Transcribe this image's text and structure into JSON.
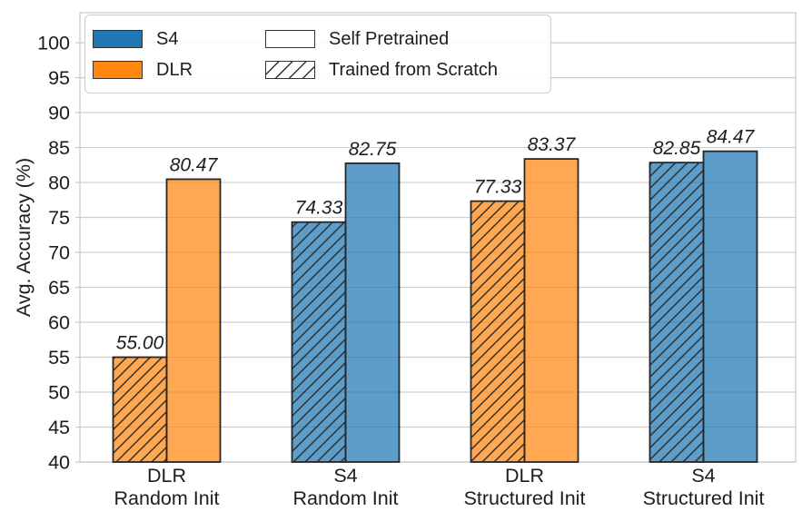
{
  "page": {
    "background": "#ffffff"
  },
  "chart_data": {
    "type": "bar",
    "title": "",
    "xlabel": "",
    "ylabel": "Avg. Accuracy (%)",
    "ylim": [
      40,
      104.3
    ],
    "yticks": [
      40,
      45,
      50,
      55,
      60,
      65,
      70,
      75,
      80,
      85,
      90,
      95,
      100
    ],
    "grid": true,
    "legend_position": "upper left",
    "categories": [
      [
        "DLR",
        "Random Init"
      ],
      [
        "S4",
        "Random Init"
      ],
      [
        "DLR",
        "Structured Init"
      ],
      [
        "S4",
        "Structured Init"
      ]
    ],
    "category_models": [
      "DLR",
      "S4",
      "DLR",
      "S4"
    ],
    "series": [
      {
        "name": "Trained from Scratch",
        "hatch": true,
        "values": [
          55.0,
          74.33,
          77.33,
          82.85
        ]
      },
      {
        "name": "Self Pretrained",
        "hatch": false,
        "values": [
          80.47,
          82.75,
          83.37,
          84.47
        ]
      }
    ],
    "value_labels": [
      "55.00",
      "74.33",
      "77.33",
      "82.85",
      "80.47",
      "82.75",
      "83.37",
      "84.47"
    ],
    "colors": {
      "S4": "#1f77b4",
      "DLR": "#ff870e",
      "bar_alpha": 0.72,
      "bar_edge": "#262626",
      "hatch": "#2f2f2f",
      "grid": "#cccccc",
      "spine": "#c8c8c8",
      "text": "#1d1d1d"
    }
  },
  "legend": {
    "items": [
      {
        "label": "S4",
        "swatch": "color",
        "color": "#1f77b4"
      },
      {
        "label": "DLR",
        "swatch": "color",
        "color": "#ff870e"
      },
      {
        "label": "Self Pretrained",
        "swatch": "solid-white"
      },
      {
        "label": "Trained from Scratch",
        "swatch": "hatched"
      }
    ]
  }
}
